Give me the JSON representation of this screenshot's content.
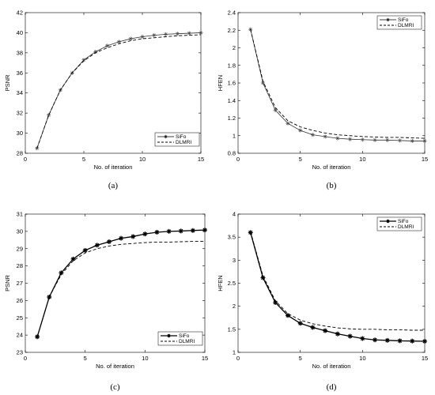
{
  "chart_data": [
    {
      "type": "line",
      "panel_label": "(a)",
      "xlabel": "No. of iteration",
      "ylabel": "PSNR",
      "xlim": [
        0,
        15
      ],
      "ylim": [
        28,
        42
      ],
      "xticks": [
        0,
        5,
        10,
        15
      ],
      "yticks": [
        28,
        30,
        32,
        34,
        36,
        38,
        40,
        42
      ],
      "legend": "bottom-right",
      "x": [
        1,
        2,
        3,
        4,
        5,
        6,
        7,
        8,
        9,
        10,
        11,
        12,
        13,
        14,
        15
      ],
      "series": [
        {
          "name": "SiFo",
          "style": "solid-star",
          "values": [
            28.5,
            31.8,
            34.3,
            36.0,
            37.3,
            38.1,
            38.7,
            39.1,
            39.4,
            39.6,
            39.75,
            39.85,
            39.9,
            39.95,
            40.0
          ]
        },
        {
          "name": "DLMRI",
          "style": "dashed",
          "values": [
            28.5,
            31.8,
            34.3,
            36.0,
            37.2,
            38.0,
            38.5,
            38.9,
            39.2,
            39.4,
            39.5,
            39.6,
            39.7,
            39.75,
            39.8
          ]
        }
      ]
    },
    {
      "type": "line",
      "panel_label": "(b)",
      "xlabel": "No. of iteration",
      "ylabel": "HFEN",
      "xlim": [
        0,
        15
      ],
      "ylim": [
        0.8,
        2.4
      ],
      "xticks": [
        0,
        5,
        10,
        15
      ],
      "yticks": [
        0.8,
        1,
        1.2,
        1.4,
        1.6,
        1.8,
        2,
        2.2,
        2.4
      ],
      "ytick_labels": [
        "0.8",
        "1",
        "1.2",
        "1.4",
        "1.6",
        "1.8",
        "2",
        "2.2",
        "2.4"
      ],
      "legend": "top-right",
      "x": [
        1,
        2,
        3,
        4,
        5,
        6,
        7,
        8,
        9,
        10,
        11,
        12,
        13,
        14,
        15
      ],
      "series": [
        {
          "name": "SiFo",
          "style": "solid-star",
          "values": [
            2.21,
            1.6,
            1.29,
            1.14,
            1.06,
            1.01,
            0.99,
            0.97,
            0.96,
            0.955,
            0.95,
            0.95,
            0.945,
            0.94,
            0.94
          ]
        },
        {
          "name": "DLMRI",
          "style": "dashed",
          "values": [
            2.21,
            1.62,
            1.32,
            1.17,
            1.1,
            1.06,
            1.03,
            1.01,
            1.0,
            0.99,
            0.985,
            0.98,
            0.98,
            0.975,
            0.97
          ]
        }
      ]
    },
    {
      "type": "line",
      "panel_label": "(c)",
      "xlabel": "No. of iteration",
      "ylabel": "PSNR",
      "xlim": [
        0,
        15
      ],
      "ylim": [
        23,
        31
      ],
      "xticks": [
        0,
        5,
        10,
        15
      ],
      "yticks": [
        23,
        24,
        25,
        26,
        27,
        28,
        29,
        30,
        31
      ],
      "legend": "bottom-right",
      "x": [
        1,
        2,
        3,
        4,
        5,
        6,
        7,
        8,
        9,
        10,
        11,
        12,
        13,
        14,
        15
      ],
      "series": [
        {
          "name": "SiFo",
          "style": "bold-star",
          "values": [
            23.9,
            26.2,
            27.6,
            28.4,
            28.9,
            29.2,
            29.4,
            29.6,
            29.7,
            29.85,
            29.95,
            30.0,
            30.02,
            30.05,
            30.08
          ]
        },
        {
          "name": "DLMRI",
          "style": "dashed",
          "values": [
            23.9,
            26.2,
            27.5,
            28.3,
            28.75,
            29.0,
            29.15,
            29.25,
            29.3,
            29.35,
            29.38,
            29.38,
            29.4,
            29.42,
            29.42
          ]
        }
      ]
    },
    {
      "type": "line",
      "panel_label": "(d)",
      "xlabel": "No. of iteration",
      "ylabel": "HFEN",
      "xlim": [
        0,
        15
      ],
      "ylim": [
        1,
        4
      ],
      "xticks": [
        0,
        5,
        10,
        15
      ],
      "yticks": [
        1,
        1.5,
        2,
        2.5,
        3,
        3.5,
        4
      ],
      "ytick_labels": [
        "1",
        "1.5",
        "2",
        "2.5",
        "3",
        "3.5",
        "4"
      ],
      "legend": "top-right",
      "x": [
        1,
        2,
        3,
        4,
        5,
        6,
        7,
        8,
        9,
        10,
        11,
        12,
        13,
        14,
        15
      ],
      "series": [
        {
          "name": "SiFo",
          "style": "bold-star",
          "values": [
            3.6,
            2.62,
            2.08,
            1.8,
            1.63,
            1.54,
            1.47,
            1.4,
            1.35,
            1.3,
            1.27,
            1.26,
            1.25,
            1.245,
            1.24
          ]
        },
        {
          "name": "DLMRI",
          "style": "dashed",
          "values": [
            3.62,
            2.66,
            2.12,
            1.84,
            1.7,
            1.62,
            1.57,
            1.53,
            1.51,
            1.5,
            1.5,
            1.49,
            1.49,
            1.48,
            1.48
          ]
        }
      ]
    }
  ]
}
